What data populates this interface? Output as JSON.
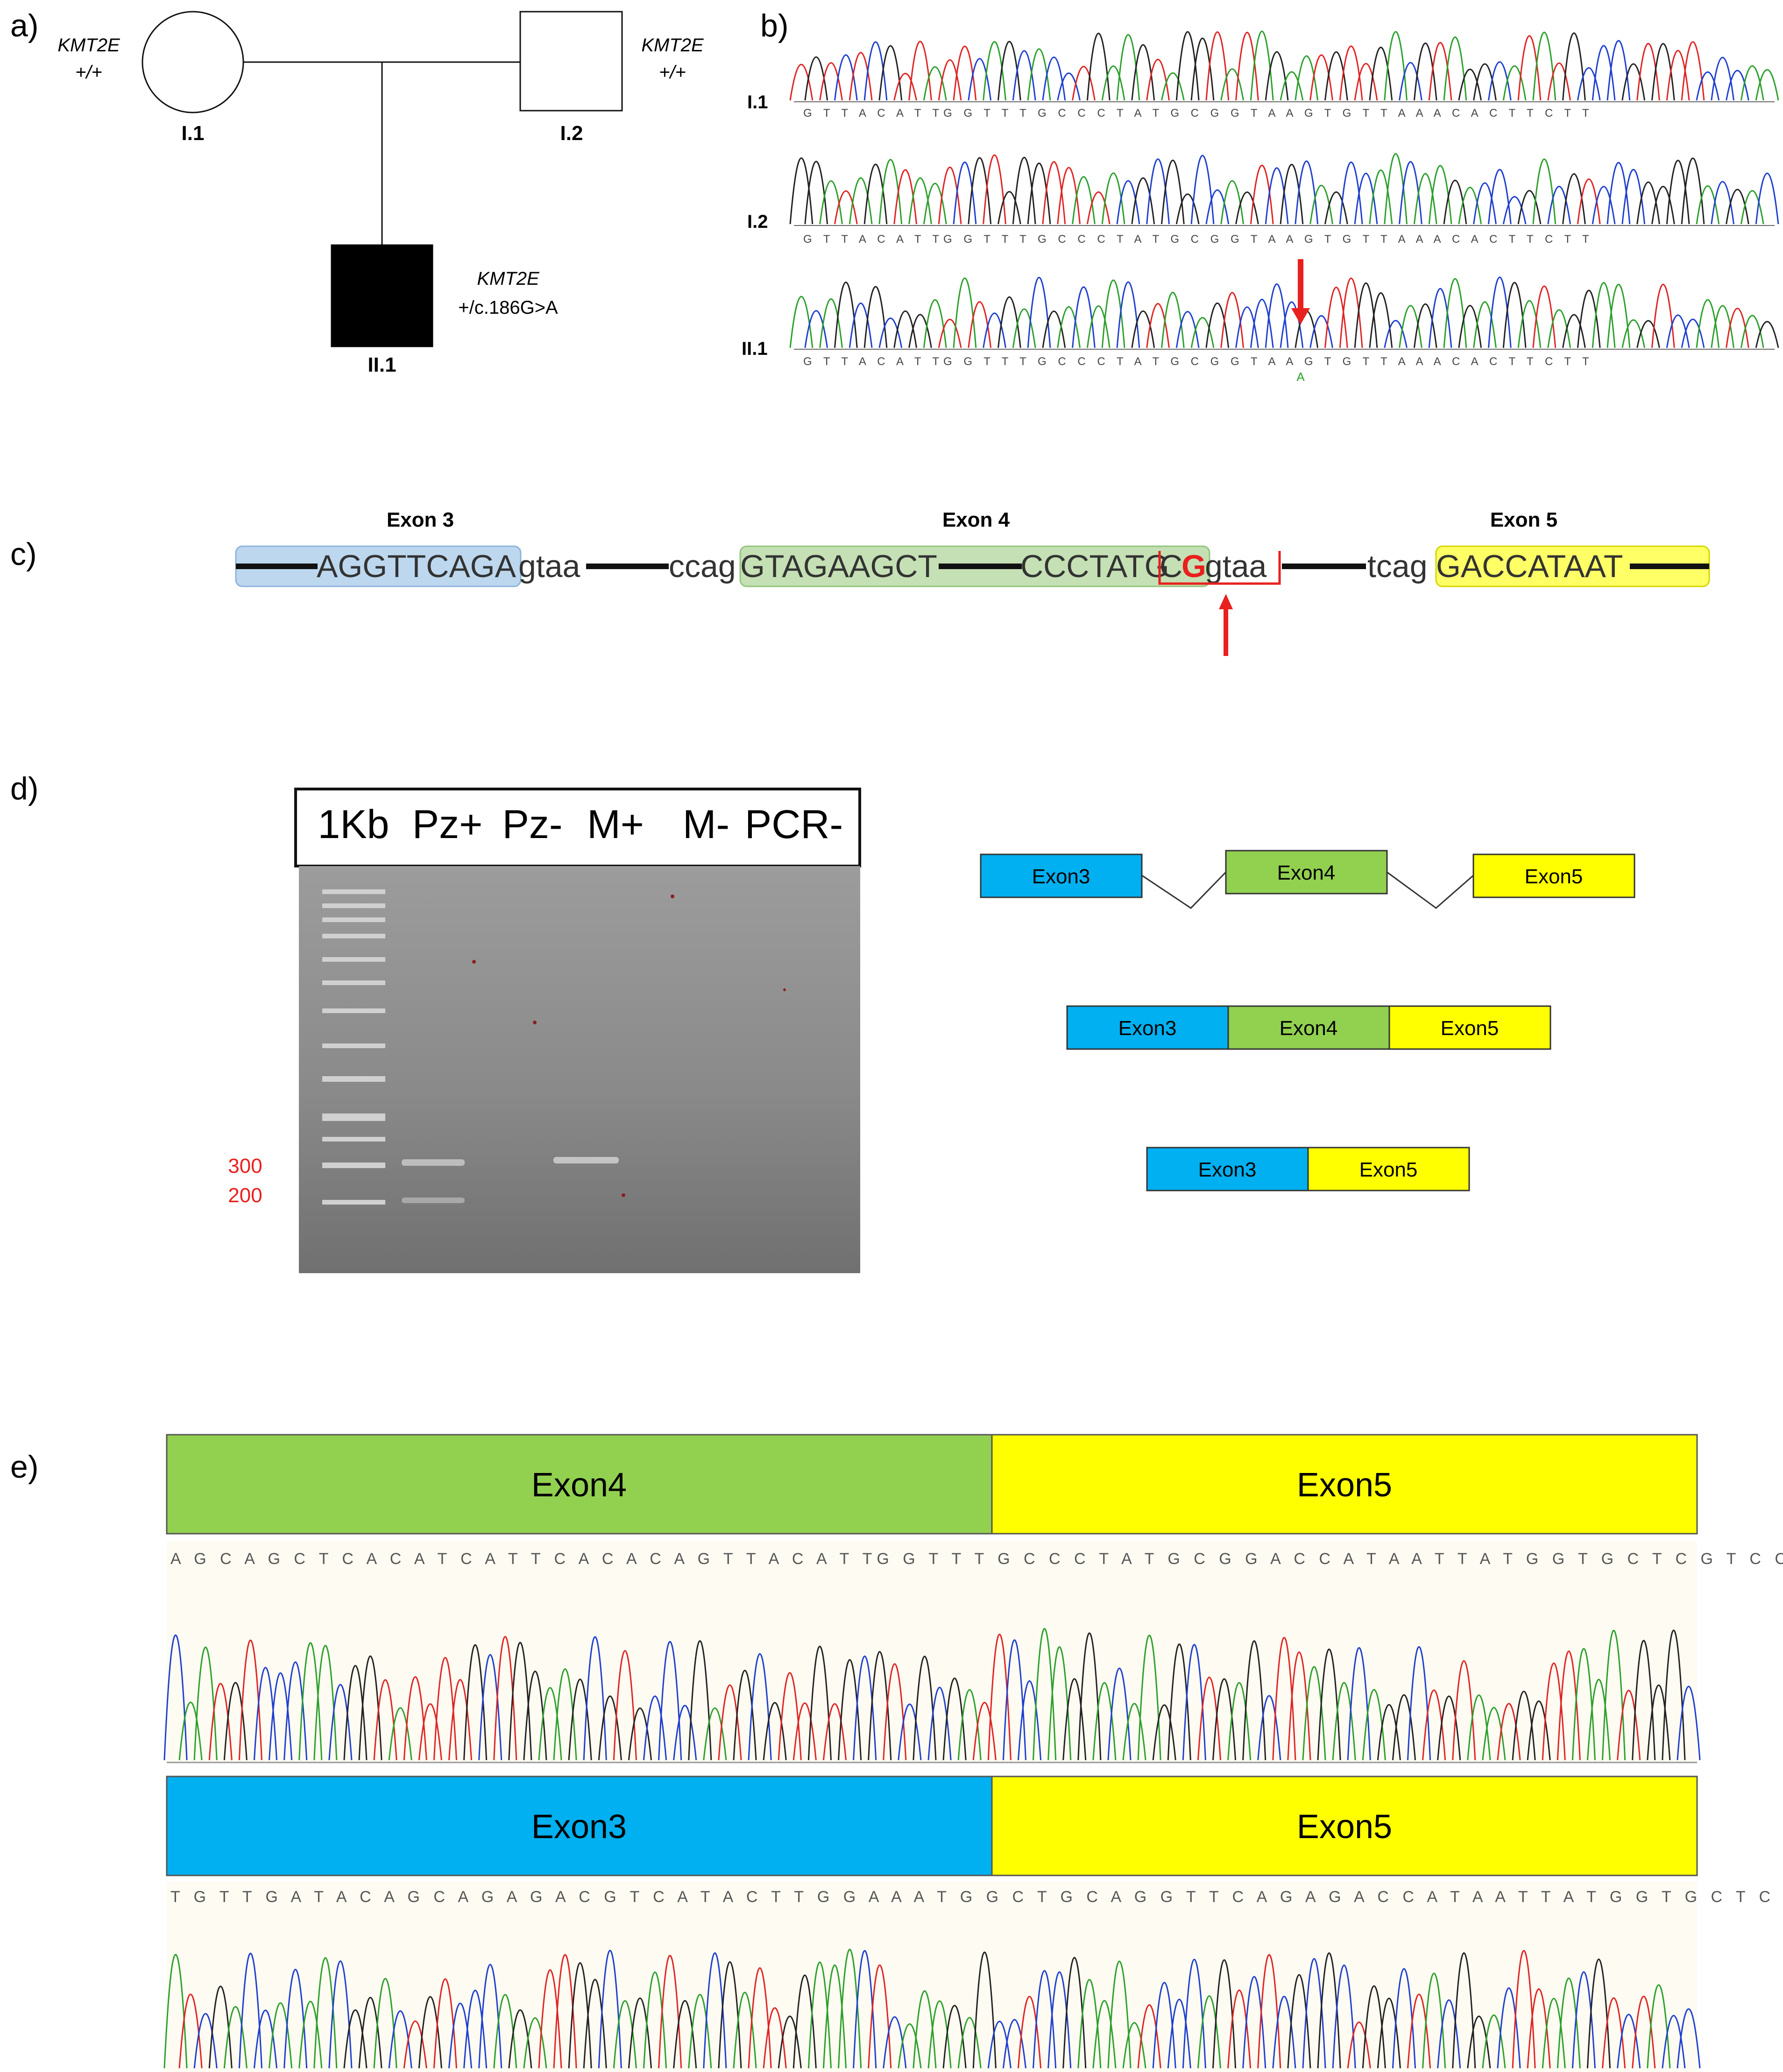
{
  "panels": {
    "a": {
      "label": "a)",
      "gene": "KMT2E",
      "individuals": [
        {
          "id": "I.1",
          "sex": "female",
          "affected": false,
          "genotype": "+/+"
        },
        {
          "id": "I.2",
          "sex": "male",
          "affected": false,
          "genotype": "+/+"
        },
        {
          "id": "II.1",
          "sex": "male",
          "affected": true,
          "genotype": "+/c.186G>A"
        }
      ]
    },
    "b": {
      "label": "b)",
      "rows": [
        {
          "id": "I.1",
          "sequence": "G T T A C A T TG G T T T G C C C T A T G C G G T A A G T G T T A A A C A C T T C T T",
          "alt": ""
        },
        {
          "id": "I.2",
          "sequence": "G T T A C A T TG G T T T G C C C T A T G C G G T A A G T G T T A A A C A C T T C T T",
          "alt": ""
        },
        {
          "id": "II.1",
          "sequence": "G T T A C A T TG G T T T G C C C T A T G C G G T A A G T G T T A A A C A C T T C T T",
          "alt": "A"
        }
      ]
    },
    "c": {
      "label": "c)",
      "exons": [
        {
          "name": "Exon 3",
          "seq": "AGGTTCAGA",
          "color": "#bdd7ee"
        },
        {
          "name": "Exon 4",
          "seq_left": "GTAGAAGCT",
          "seq_right": "CCCTATG",
          "mut_c": "C",
          "mut_g": "G",
          "color": "#c5e0b4"
        },
        {
          "name": "Exon 5",
          "seq": "GACCATAAT",
          "color": "#ffff66"
        }
      ],
      "intron_ends": {
        "e3_donor": "gtaa",
        "e4_acceptor": "ccag",
        "e4_donor": "gtaa",
        "e5_acceptor": "tcag"
      }
    },
    "d": {
      "label": "d)",
      "gel_lanes": [
        "1Kb",
        "Pz+",
        "Pz-",
        "M+",
        "M-",
        "PCR-"
      ],
      "markers": [
        "300",
        "200"
      ],
      "diagrams": [
        {
          "type": "splicing",
          "segments": [
            "Exon3",
            "Exon4",
            "Exon5"
          ]
        },
        {
          "type": "normal-transcript",
          "segments": [
            "Exon3",
            "Exon4",
            "Exon5"
          ]
        },
        {
          "type": "skipped-transcript",
          "segments": [
            "Exon3",
            "Exon5"
          ]
        }
      ]
    },
    "e": {
      "label": "e)",
      "traces": [
        {
          "left_exon": "Exon4",
          "left_color": "#92d050",
          "right_exon": "Exon5",
          "right_color": "#ffff00",
          "sequence": "A G C A G C T C A C A T C A T T C A C A C A G T T A C A T TG G T T T G C C C T A T G C G G A C C A T A A T T A T G G T G C T C G T C C T C C T C C G A C A C C T C C"
        },
        {
          "left_exon": "Exon3",
          "left_color": "#00b0f0",
          "right_exon": "Exon5",
          "right_color": "#ffff00",
          "sequence": "T G T T G A T A C A G C A G A G A C G T C A T A C T T G G A A A T G G C T G C A G G T T C A G A G A C C A T A A T T A T G G T G C T C G T C C T C C T C C G A C A C C T C C G G"
        }
      ]
    },
    "colors": {
      "blue_exon": "#00b0f0",
      "green_exon": "#92d050",
      "yellow_exon": "#ffff00",
      "mutation_red": "#e8201e",
      "trace_A": "#2ca02c",
      "trace_C": "#1f3fd0",
      "trace_G": "#222222",
      "trace_T": "#e02424"
    }
  }
}
